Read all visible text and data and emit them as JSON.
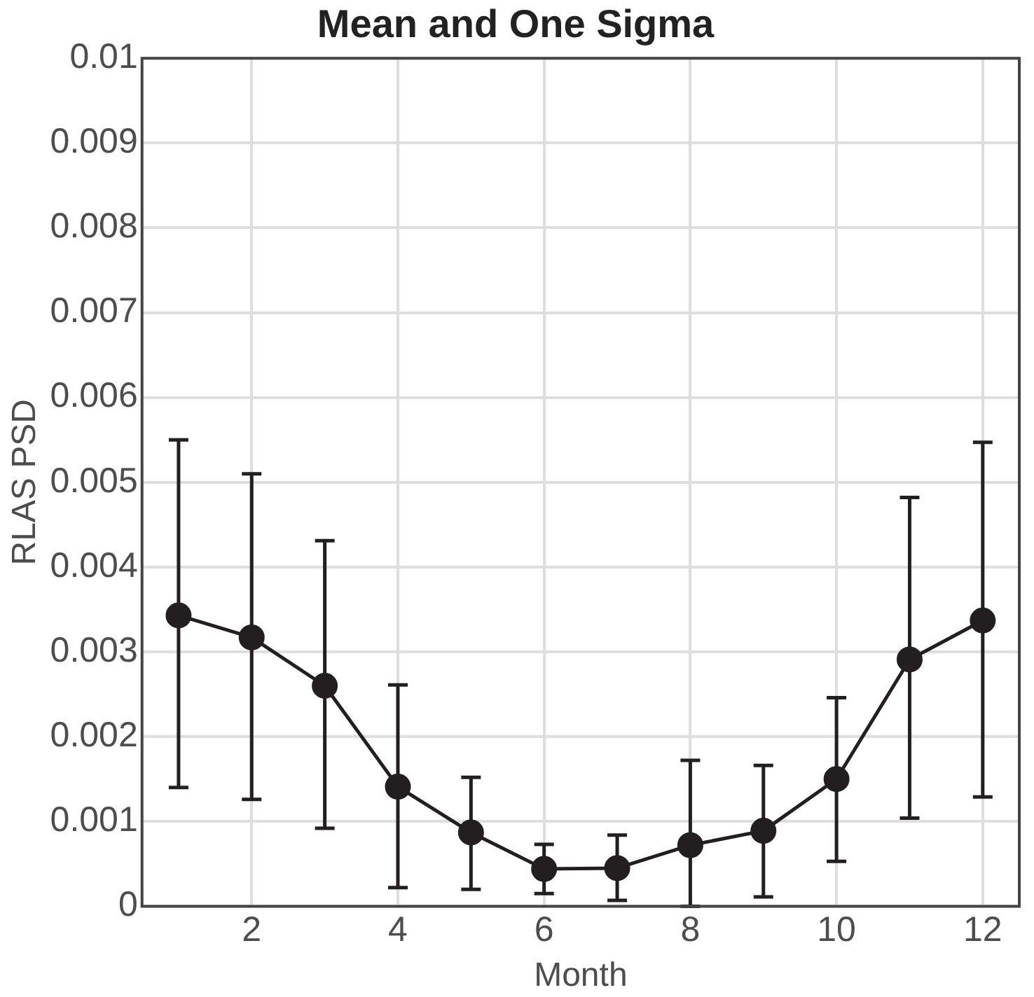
{
  "chart_data": {
    "type": "line",
    "title": "Mean and One Sigma",
    "xlabel": "Month",
    "ylabel": "RLAS PSD",
    "x": [
      1,
      2,
      3,
      4,
      5,
      6,
      7,
      8,
      9,
      10,
      11,
      12
    ],
    "series": [
      {
        "color": "#231f20",
        "values": [
          0.00343,
          0.00317,
          0.0026,
          0.00141,
          0.00087,
          0.00044,
          0.00045,
          0.00072,
          0.00089,
          0.0015,
          0.00291,
          0.00337
        ],
        "errors": [
          [
            0.0014,
            0.0055
          ],
          [
            0.00126,
            0.0051
          ],
          [
            0.00092,
            0.00431
          ],
          [
            0.00022,
            0.00261
          ],
          [
            0.0002,
            0.00152
          ],
          [
            0.00015,
            0.00073
          ],
          [
            7e-05,
            0.00084
          ],
          [
            0,
            0.00172
          ],
          [
            0.00011,
            0.00166
          ],
          [
            0.00053,
            0.00246
          ],
          [
            0.00104,
            0.00482
          ],
          [
            0.00129,
            0.00547
          ]
        ]
      }
    ],
    "xlim": [
      0.5,
      12.5
    ],
    "xticks": [
      2,
      4,
      6,
      8,
      10,
      12
    ],
    "ylim": [
      0,
      0.01
    ],
    "yticks": [
      0,
      0.001,
      0.002,
      0.003,
      0.004,
      0.005,
      0.006,
      0.007,
      0.008,
      0.009,
      0.01
    ],
    "grid": true,
    "legend": false,
    "marker": "circle",
    "line_style": "solid"
  }
}
